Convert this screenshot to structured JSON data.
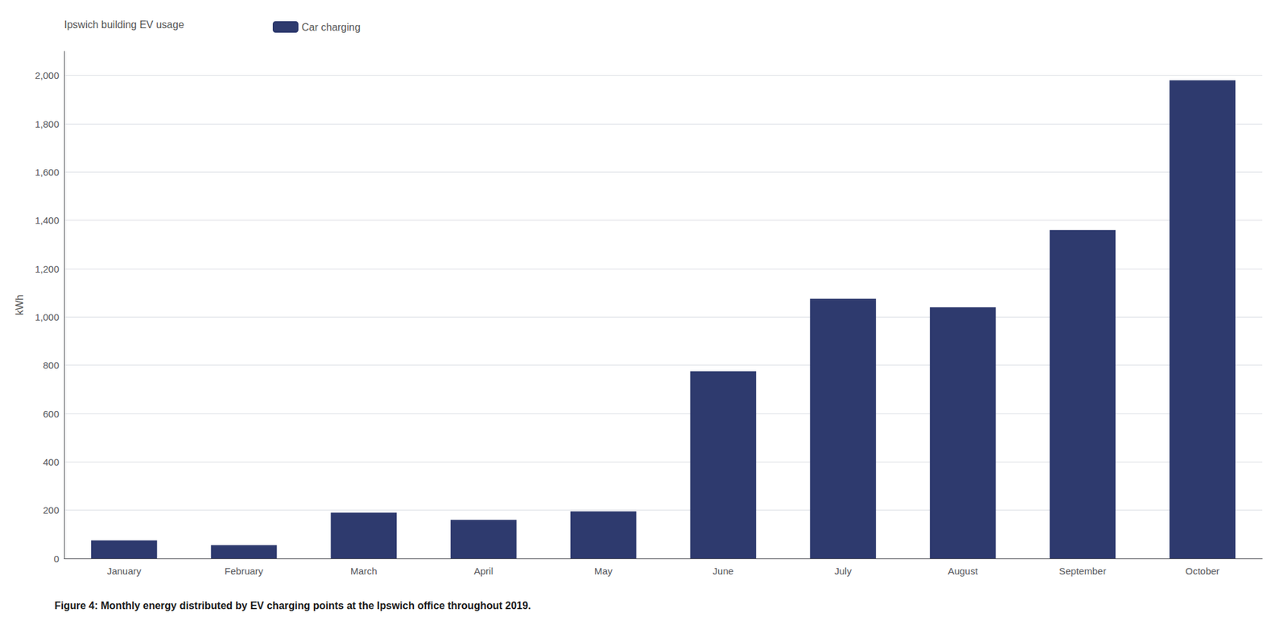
{
  "chart_data": {
    "type": "bar",
    "title": "Figure 4: Monthly energy distributed by EV charging points at the Ipswich office throughout 2019.",
    "annotations": [
      "Ipswich building EV usage"
    ],
    "ylabel": "kWh",
    "categories": [
      "January",
      "February",
      "March",
      "April",
      "May",
      "June",
      "July",
      "August",
      "September",
      "October"
    ],
    "series": [
      {
        "name": "Car charging",
        "color": "#2e3a6e",
        "values": [
          75,
          55,
          190,
          160,
          195,
          775,
          1075,
          1040,
          1360,
          1980
        ]
      }
    ],
    "ylim": [
      0,
      2100
    ],
    "yticks": [
      0,
      200,
      400,
      600,
      800,
      {
        "value": 1000,
        "label": "1,000"
      },
      {
        "value": 1200,
        "label": "1,200"
      },
      {
        "value": 1400,
        "label": "1,400"
      },
      {
        "value": 1600,
        "label": "1,600"
      },
      {
        "value": 1800,
        "label": "1,800"
      },
      {
        "value": 2000,
        "label": "2,000"
      }
    ],
    "grid": true,
    "legend": "top left"
  }
}
